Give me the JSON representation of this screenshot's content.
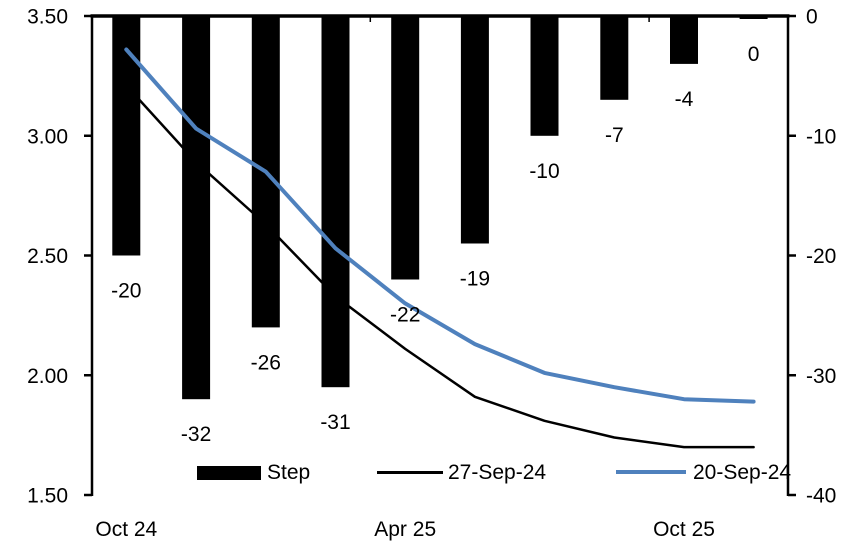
{
  "chart_data": {
    "type": "combo-bar-line",
    "title": "",
    "categories": [
      "Oct 24",
      "",
      "",
      "",
      "Apr 25",
      "",
      "",
      "",
      "Oct 25",
      ""
    ],
    "x_axis": {
      "tick_labels": [
        {
          "index": 0,
          "label": "Oct 24"
        },
        {
          "index": 4,
          "label": "Apr 25"
        },
        {
          "index": 8,
          "label": "Oct 25"
        }
      ]
    },
    "left_axis": {
      "min": 1.5,
      "max": 3.5,
      "tick_labels": [
        "3.50",
        "3.00",
        "2.50",
        "2.00",
        "1.50"
      ]
    },
    "right_axis": {
      "min": -40,
      "max": 0,
      "tick_labels": [
        "0",
        "-10",
        "-20",
        "-30",
        "-40"
      ]
    },
    "series": [
      {
        "name": "Step",
        "type": "bar",
        "axis": "right",
        "color": "#000000",
        "values": [
          -20,
          -32,
          -26,
          -31,
          -22,
          -19,
          -10,
          -7,
          -4,
          0
        ],
        "data_labels": [
          "-20",
          "-32",
          "-26",
          "-31",
          "-22",
          "-19",
          "-10",
          "-7",
          "-4",
          "0"
        ]
      },
      {
        "name": "27-Sep-24",
        "type": "line",
        "axis": "left",
        "color": "#000000",
        "values": [
          3.21,
          2.89,
          2.63,
          2.33,
          2.11,
          1.91,
          1.81,
          1.74,
          1.7,
          1.7
        ]
      },
      {
        "name": "20-Sep-24",
        "type": "line",
        "axis": "left",
        "color": "#4f81bd",
        "values": [
          3.36,
          3.03,
          2.85,
          2.53,
          2.3,
          2.13,
          2.01,
          1.95,
          1.9,
          1.89
        ]
      }
    ],
    "legend": {
      "position": "bottom",
      "entries": [
        "Step",
        "27-Sep-24",
        "20-Sep-24"
      ]
    }
  }
}
